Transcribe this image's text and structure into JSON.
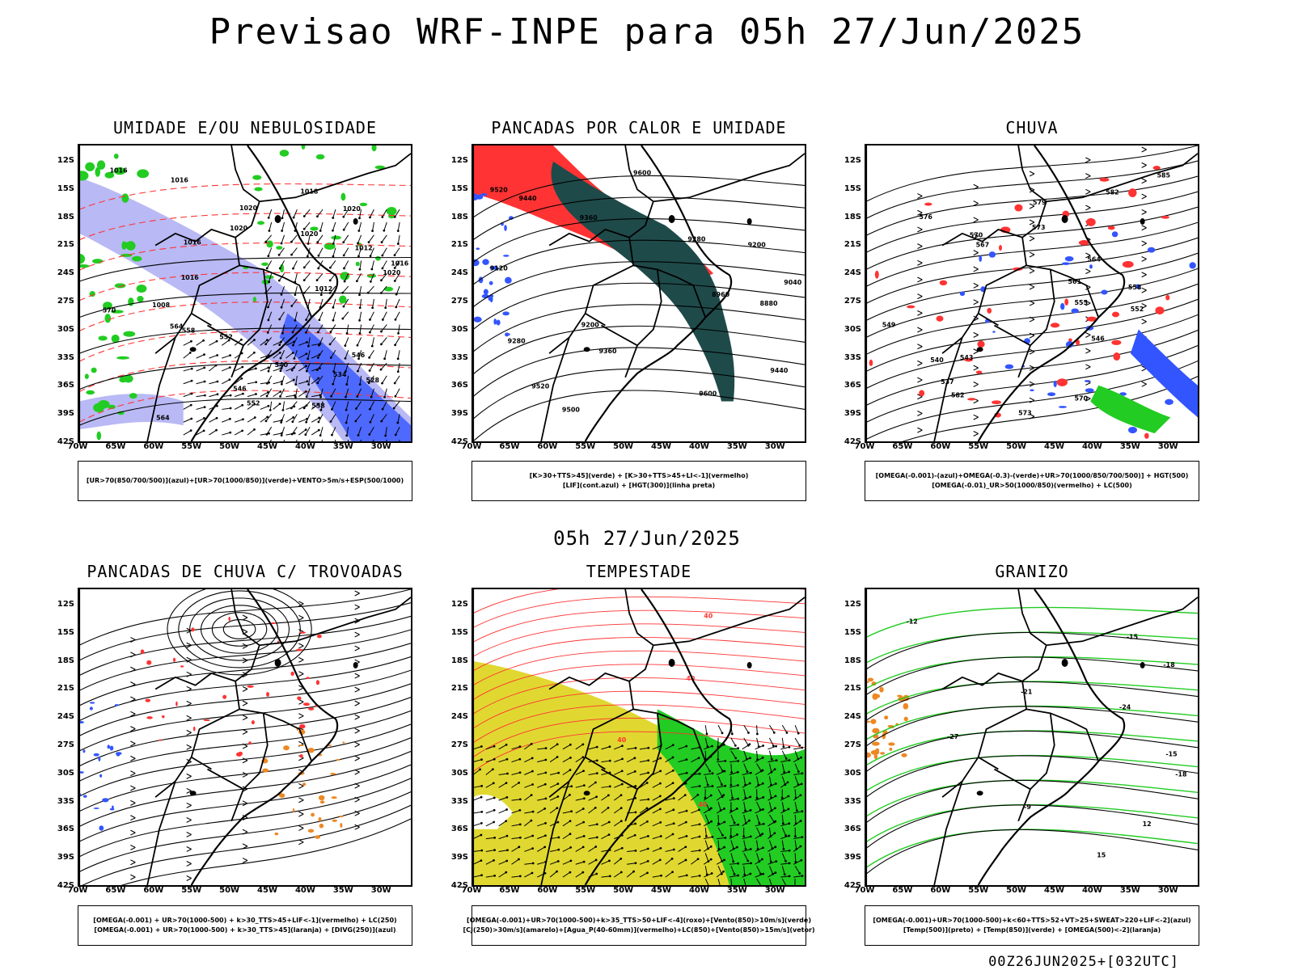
{
  "header": {
    "title": "Previsao WRF-INPE  para 05h 27/Jun/2025",
    "mid_title": "05h 27/Jun/2025",
    "footer": "00Z26JUN2025+[032UTC]"
  },
  "axes": {
    "lat_labels": [
      "12S",
      "15S",
      "18S",
      "21S",
      "24S",
      "27S",
      "30S",
      "33S",
      "36S",
      "39S",
      "42S"
    ],
    "lon_labels": [
      "70W",
      "65W",
      "60W",
      "55W",
      "50W",
      "45W",
      "40W",
      "35W",
      "30W"
    ]
  },
  "panels": [
    {
      "title": "UMIDADE E/OU NEBULOSIDADE",
      "legend": [
        "[UR>70(850/700/500)](azul)+[UR>70(1000/850)](verde)+VENTO>5m/s+ESP(500/1000)"
      ],
      "contour_labels": [
        "1016",
        "1016",
        "1018",
        "1020",
        "1020",
        "1020",
        "1020",
        "1016",
        "1012",
        "1016",
        "1020",
        "1016",
        "1012",
        "1008",
        "570",
        "564",
        "558",
        "552",
        "546",
        "540",
        "534",
        "528",
        "546",
        "552",
        "558",
        "564"
      ]
    },
    {
      "title": "PANCADAS POR CALOR E UMIDADE",
      "legend": [
        "[K>30+TTS>45](verde) + [K>30+TTS>45+LI<-1](vermelho)",
        "[LIF](cont.azul) + [HGT(300)](linha preta)"
      ],
      "contour_labels": [
        "9600",
        "9520",
        "9440",
        "9360",
        "9280",
        "9200",
        "9120",
        "9040",
        "8960",
        "8880",
        "9200",
        "9280",
        "9360",
        "9440",
        "9520",
        "9600",
        "9500"
      ]
    },
    {
      "title": "CHUVA",
      "legend": [
        "[OMEGA(-0.001)-(azul)+OMEGA(-0.3)-(verde)+UR>70(1000/850/700/500)] + HGT(500)",
        "[OMEGA(-0.01)_UR>50(1000/850)(vermelho) + LC(500)"
      ],
      "contour_labels": [
        "585",
        "582",
        "579",
        "576",
        "573",
        "570",
        "567",
        "564",
        "561",
        "558",
        "555",
        "552",
        "549",
        "546",
        "543",
        "540",
        "537",
        "582",
        "570",
        "573"
      ]
    },
    {
      "title": "PANCADAS DE CHUVA C/ TROVOADAS",
      "legend": [
        "[OMEGA(-0.001) + UR>70(1000-500) + k>30_TTS>45+LIF<-1](vermelho) + LC(250)",
        "[OMEGA(-0.001) + UR>70(1000-500) + k>30_TTS>45](laranja) + [DIVG(250)](azul)"
      ],
      "contour_labels": []
    },
    {
      "title": "TEMPESTADE",
      "legend": [
        "[OMEGA(-0.001)+UR>70(1000-500)+k>35_TTS>50+LIF<-4](roxo)+[Vento(850)>10m/s](verde)",
        "[CJ(250)>30m/s](amarelo)+[Agua_P(40-60mm)](vermelho)+LC(850)+[Vento(850)>15m/s](vetor)"
      ],
      "contour_labels": [
        "40",
        "40",
        "40",
        "40"
      ]
    },
    {
      "title": "GRANIZO",
      "legend": [
        "[OMEGA(-0.001)+UR>70(1000-500)+k<60+TTS>52+VT>25+SWEAT>220+LIF<-2](azul)",
        "[Temp(500)](preto) + [Temp(850)](verde) + [OMEGA(500)<-2](laranja)"
      ],
      "contour_labels": [
        "-12",
        "-15",
        "-18",
        "-21",
        "-24",
        "-27",
        "-15",
        "-18",
        "-9",
        "12",
        "15"
      ]
    }
  ],
  "colors": {
    "green": "#22cc22",
    "red": "#ff3333",
    "blue": "#3355ff",
    "lightblue": "#b9b9f5",
    "darkteal": "#1f4a4a",
    "yellow": "#e0d830",
    "orange": "#ee8822"
  }
}
